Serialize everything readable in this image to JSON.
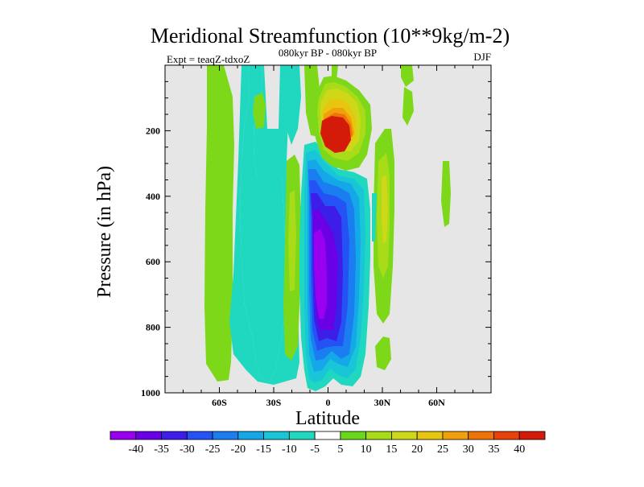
{
  "chart_data": {
    "type": "contour",
    "title": "Meridional Streamfunction (10**9kg/m-2)",
    "subtitle": "080kyr BP - 080kyr BP",
    "left_note": "Expt = teaqZ-tdxoZ",
    "right_note": "DJF",
    "xlabel": "Latitude",
    "ylabel": "Pressure (in hPa)",
    "x_ticks": [
      {
        "value": -60,
        "label": "60S"
      },
      {
        "value": -30,
        "label": "30S"
      },
      {
        "value": 0,
        "label": "0"
      },
      {
        "value": 30,
        "label": "30N"
      },
      {
        "value": 60,
        "label": "60N"
      }
    ],
    "xlim": [
      -90,
      90
    ],
    "y_ticks": [
      {
        "value": 200,
        "label": "200"
      },
      {
        "value": 400,
        "label": "400"
      },
      {
        "value": 600,
        "label": "600"
      },
      {
        "value": 800,
        "label": "800"
      },
      {
        "value": 1000,
        "label": "1000"
      }
    ],
    "ylim": [
      0,
      1000
    ],
    "y_reversed": true,
    "plot_background": "#e6e6e6",
    "features": [
      {
        "name": "deep-negative-cell",
        "lat_range": [
          -13,
          20
        ],
        "p_range": [
          250,
          990
        ],
        "min_value": -40
      },
      {
        "name": "positive-upper-cell",
        "lat_range": [
          -4,
          20
        ],
        "p_range": [
          100,
          290
        ],
        "max_value": 40
      },
      {
        "name": "positive-band-25N",
        "lat_range": [
          25,
          37
        ],
        "p_range": [
          150,
          520
        ],
        "max_value": 15
      }
    ],
    "colorbar": {
      "levels": [
        "-40",
        "-35",
        "-30",
        "-25",
        "-20",
        "-15",
        "-10",
        "-5",
        "5",
        "10",
        "15",
        "20",
        "25",
        "30",
        "35",
        "40"
      ],
      "colors": [
        "#9a00f0",
        "#6a00e6",
        "#3c1ee8",
        "#2452f4",
        "#1a7ef0",
        "#14a8e8",
        "#18c6d8",
        "#20d8c0",
        "#ffffff",
        "#6ad81a",
        "#a8dc18",
        "#cfd818",
        "#e8c610",
        "#f0a00a",
        "#ee7408",
        "#e8420a",
        "#d41a08"
      ]
    }
  }
}
